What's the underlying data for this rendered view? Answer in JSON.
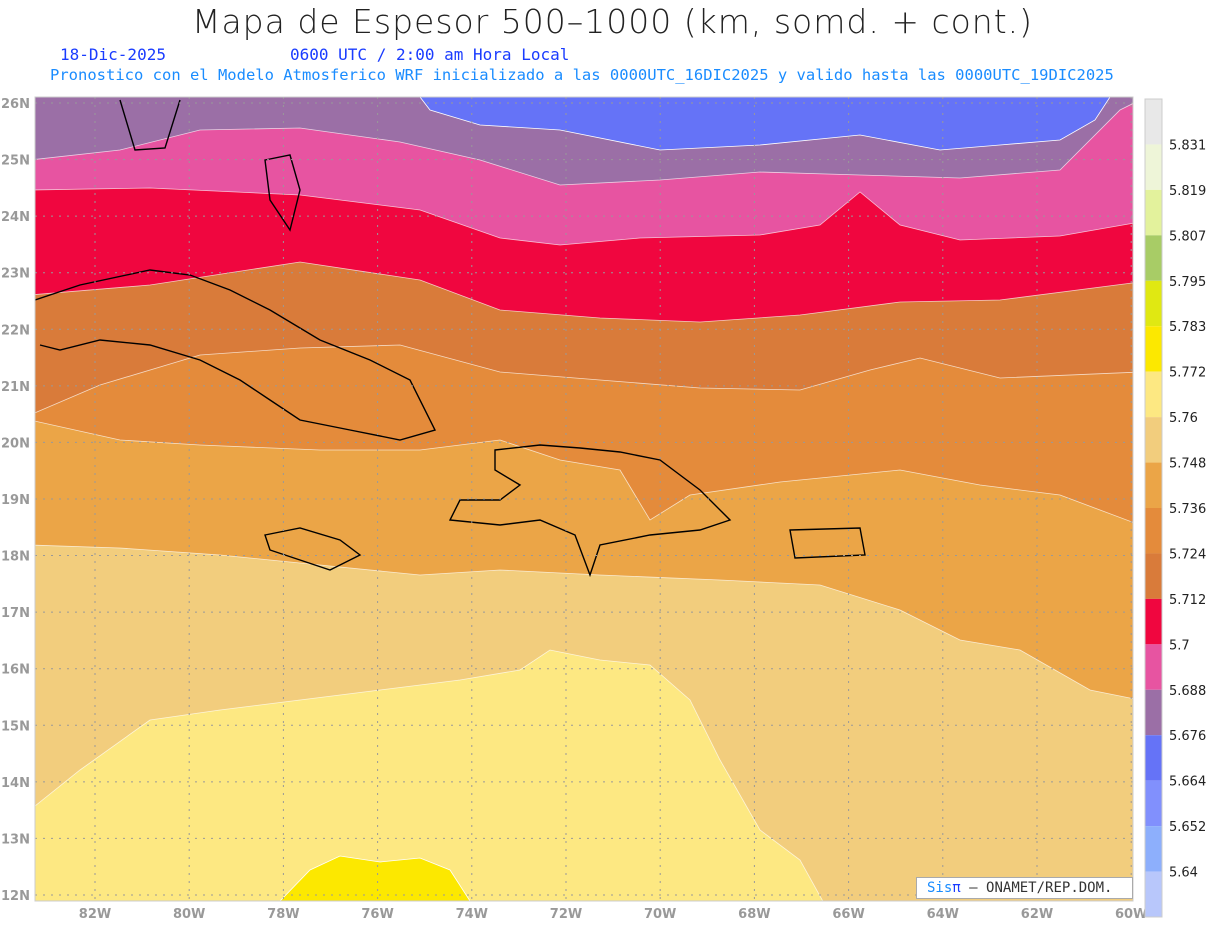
{
  "title": "Mapa de Espesor 500–1000 (km, somd. + cont.)",
  "date": "18-Dic-2025",
  "time": "0600 UTC / 2:00 am Hora Local",
  "description": "Pronostico con el Modelo Atmosferico WRF inicializado a las 0000UTC_16DIC2025 y valido hasta las  0000UTC_19DIC2025",
  "credit": {
    "sis": "Sis",
    "pi": "π",
    "rest": "– ONAMET/REP.DOM."
  },
  "axes": {
    "lat_labels": [
      "26N",
      "25N",
      "24N",
      "23N",
      "22N",
      "21N",
      "20N",
      "19N",
      "18N",
      "17N",
      "16N",
      "15N",
      "14N",
      "13N",
      "12N"
    ],
    "lat_values": [
      26,
      25,
      24,
      23,
      22,
      21,
      20,
      19,
      18,
      17,
      16,
      15,
      14,
      13,
      12
    ],
    "lon_labels": [
      "82W",
      "80W",
      "78W",
      "76W",
      "74W",
      "72W",
      "70W",
      "68W",
      "66W",
      "64W",
      "62W",
      "60W"
    ],
    "lon_values": [
      -82,
      -80,
      -78,
      -76,
      -74,
      -72,
      -70,
      -68,
      -66,
      -64,
      -62,
      -60
    ]
  },
  "legend": {
    "labels": [
      "5.831",
      "5.819",
      "5.807",
      "5.795",
      "5.783",
      "5.772",
      "5.76",
      "5.748",
      "5.736",
      "5.724",
      "5.712",
      "5.7",
      "5.688",
      "5.676",
      "5.664",
      "5.652",
      "5.64"
    ],
    "colors": [
      "#e8e8e8",
      "#eef5d8",
      "#e3f29c",
      "#a8cc66",
      "#e0e812",
      "#fce800",
      "#fde882",
      "#f2cd7d",
      "#eba547",
      "#e48b3b",
      "#d97b3a",
      "#f0063f",
      "#e754a1",
      "#9b6fa6",
      "#6573f7",
      "#8190fd",
      "#8daffc",
      "#b8c7fb"
    ]
  }
}
